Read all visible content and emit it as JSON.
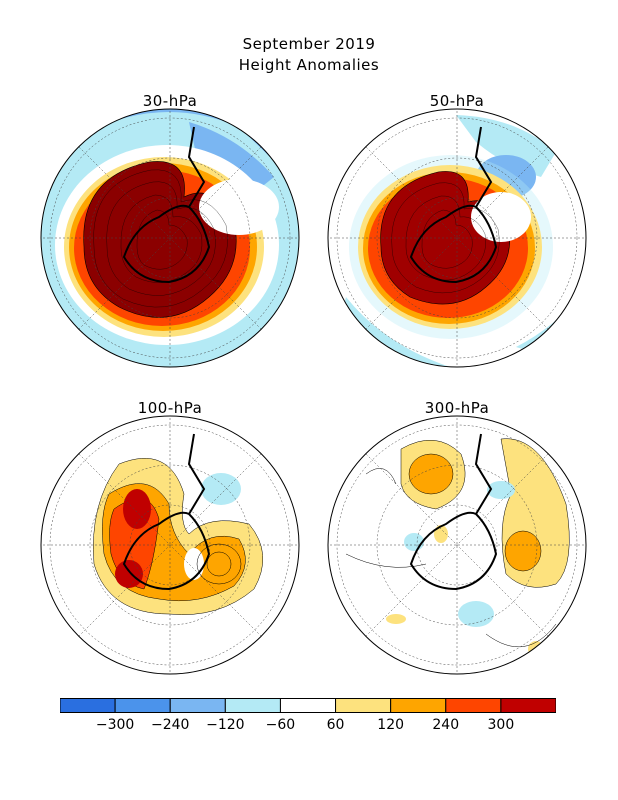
{
  "title": {
    "line1": "September 2019",
    "line2": "Height Anomalies"
  },
  "panels": [
    {
      "label": "30-hPa"
    },
    {
      "label": "50-hPa"
    },
    {
      "label": "100-hPa"
    },
    {
      "label": "300-hPa"
    }
  ],
  "colorbar": {
    "colors": [
      "#2a6fe0",
      "#4b93eb",
      "#7ab6f2",
      "#b4eaf5",
      "#ffffff",
      "#fde27e",
      "#fea500",
      "#fe4500",
      "#c00000"
    ],
    "tick_labels": [
      "-300",
      "-240",
      "-120",
      "-60",
      "60",
      "120",
      "240",
      "300"
    ]
  }
}
